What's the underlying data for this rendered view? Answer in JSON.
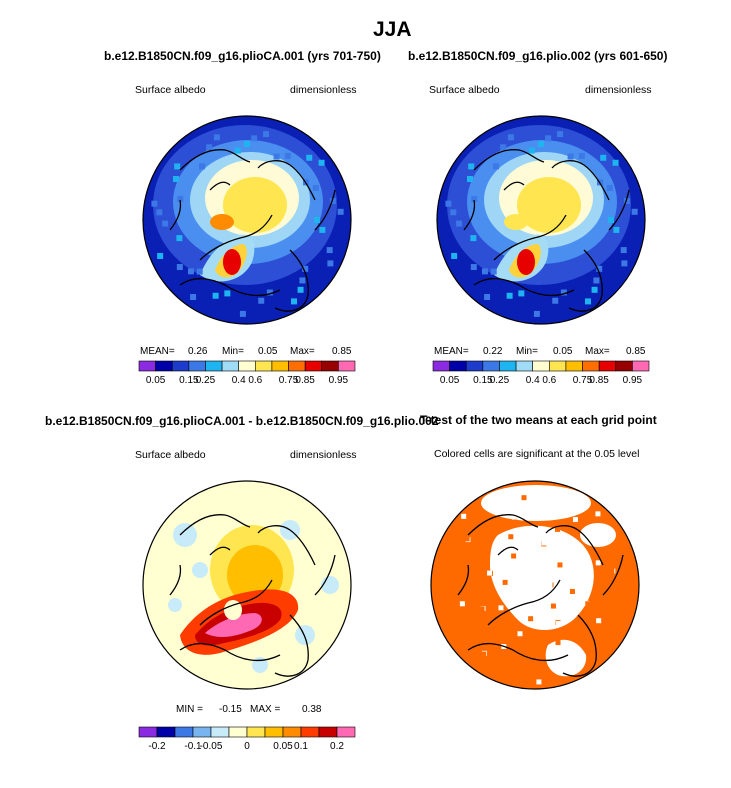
{
  "figure": {
    "title": "JJA"
  },
  "chart_data": [
    {
      "type": "heatmap",
      "projection": "north polar stereographic",
      "title": "b.e12.B1850CN.f09_g16.plioCA.001 (yrs 701-750)",
      "left_label": "Surface albedo",
      "right_label": "dimensionless",
      "stats": {
        "mean_label": "MEAN=",
        "mean": "0.26",
        "min_label": "Min=",
        "min": "0.05",
        "max_label": "Max=",
        "max": "0.85"
      },
      "colorbar": {
        "labels": [
          "0.05",
          "0.15",
          "0.25",
          "0.4",
          "0.6",
          "0.75",
          "0.85",
          "0.95"
        ],
        "colors": [
          "#8a2be2",
          "#0000a8",
          "#1e3ccc",
          "#3c78e6",
          "#1eb4f0",
          "#a0dcf5",
          "#ffffd2",
          "#ffe650",
          "#ffbe00",
          "#ff6e00",
          "#e60000",
          "#960000",
          "#ff69b4"
        ]
      }
    },
    {
      "type": "heatmap",
      "projection": "north polar stereographic",
      "title": "b.e12.B1850CN.f09_g16.plio.002 (yrs 601-650)",
      "left_label": "Surface albedo",
      "right_label": "dimensionless",
      "stats": {
        "mean_label": "MEAN=",
        "mean": "0.22",
        "min_label": "Min=",
        "min": "0.05",
        "max_label": "Max=",
        "max": "0.85"
      },
      "colorbar": {
        "labels": [
          "0.05",
          "0.15",
          "0.25",
          "0.4",
          "0.6",
          "0.75",
          "0.85",
          "0.95"
        ],
        "colors": [
          "#8a2be2",
          "#0000a8",
          "#1e3ccc",
          "#3c78e6",
          "#1eb4f0",
          "#a0dcf5",
          "#ffffd2",
          "#ffe650",
          "#ffbe00",
          "#ff6e00",
          "#e60000",
          "#960000",
          "#ff69b4"
        ]
      }
    },
    {
      "type": "heatmap",
      "projection": "north polar stereographic",
      "title": "b.e12.B1850CN.f09_g16.plioCA.001 - b.e12.B1850CN.f09_g16.plio.002",
      "left_label": "Surface albedo",
      "right_label": "dimensionless",
      "stats": {
        "min_label": "MIN =",
        "min": "-0.15",
        "max_label": "MAX =",
        "max": "0.38"
      },
      "colorbar": {
        "labels": [
          "-0.2",
          "-0.1",
          "-0.05",
          "0",
          "0.05",
          "0.1",
          "0.2"
        ],
        "colors": [
          "#8a2be2",
          "#0000a8",
          "#3c78e6",
          "#78b4f0",
          "#c8ebfa",
          "#ffffd2",
          "#ffe650",
          "#ffbe00",
          "#ff8c00",
          "#ff3c00",
          "#c80000",
          "#ff69b4"
        ]
      }
    },
    {
      "type": "heatmap",
      "projection": "north polar stereographic",
      "title": "T-test of the two means at each grid point",
      "subtitle": "Colored cells are significant at the 0.05 level",
      "colors": {
        "significant": "#ff6a00",
        "not_significant": "#ffffff"
      }
    }
  ]
}
